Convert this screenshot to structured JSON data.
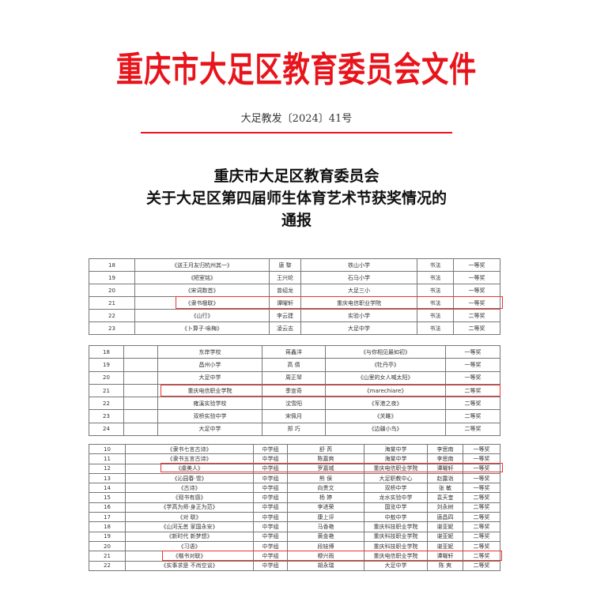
{
  "header": {
    "title": "重庆市大足区教育委员会文件",
    "doc_number": "大足教发〔2024〕41号",
    "headline": [
      "重庆市大足区教育委员会",
      "关于大足区第四届师生体育艺术节获奖情况的",
      "通报"
    ]
  },
  "colors": {
    "accent": "#e8141c",
    "highlight": "#e33333"
  },
  "table1": {
    "rows": [
      [
        "18",
        "《送王月友归杭州其一》",
        "唐 黎",
        "铁山小学",
        "书法",
        "一等奖"
      ],
      [
        "19",
        "《陋室铭》",
        "王兴纶",
        "石马小学",
        "书法",
        "一等奖"
      ],
      [
        "20",
        "《宋词数首》",
        "曾绍龙",
        "大足三小",
        "书法",
        "一等奖"
      ],
      [
        "21",
        "《隶书楹联》",
        "谭曜轩",
        "重庆电信职业学院",
        "书法",
        "一等奖"
      ],
      [
        "22",
        "《山行》",
        "李云建",
        "实验小学",
        "书法",
        "二等奖"
      ],
      [
        "23",
        "《卜算子·咏梅》",
        "凌云志",
        "大足中学",
        "书法",
        "二等奖"
      ]
    ],
    "highlighted_row": 3
  },
  "table2": {
    "rows": [
      [
        "18",
        "",
        "东岸学校",
        "蒋鑫洋",
        "《与你相见最如初》",
        "一等奖"
      ],
      [
        "19",
        "",
        "昌州小学",
        "高 倩",
        "《牡丹亭》",
        "一等奖"
      ],
      [
        "20",
        "",
        "大足中学",
        "周正琴",
        "《山里的女人喊太阳》",
        "一等奖"
      ],
      [
        "21",
        "",
        "重庆电信职业学院",
        "季宣奇",
        "《marechiare》",
        "二等奖"
      ],
      [
        "22",
        "",
        "雍溪实验学校",
        "沈雪阳",
        "《军港之夜》",
        "二等奖"
      ],
      [
        "23",
        "",
        "双桥实验中学",
        "宋佩月",
        "《关雎》",
        "二等奖"
      ],
      [
        "24",
        "",
        "大足中学",
        "郑 巧",
        "《边疆小鸟》",
        "二等奖"
      ]
    ],
    "highlighted_row": 3
  },
  "table3": {
    "rows": [
      [
        "10",
        "《隶书七言古诗》",
        "中学组",
        "舒 芮",
        "海棠中学",
        "李思南",
        "一等奖"
      ],
      [
        "11",
        "《隶书五言古诗》",
        "中学组",
        "陈嘉爽",
        "海棠中学",
        "李思南",
        "一等奖"
      ],
      [
        "12",
        "《虞美人》",
        "中学组",
        "罗嘉城",
        "重庆电信职业学院",
        "谭曜轩",
        "一等奖"
      ],
      [
        "13",
        "《沁园春·雪》",
        "中学组",
        "熊 俣",
        "大足职教中心",
        "赵露诣",
        "一等奖"
      ],
      [
        "14",
        "《古诗》",
        "中学组",
        "向贵文",
        "双桥中学",
        "张 敏",
        "一等奖"
      ],
      [
        "15",
        "《观书有感》",
        "中学组",
        "杨 婷",
        "龙水实验中学",
        "袁天奎",
        "二等奖"
      ],
      [
        "16",
        "《学高为师·身正为范》",
        "中学组",
        "李进荣",
        "国览中学",
        "刘永树",
        "二等奖"
      ],
      [
        "17",
        "《对 联》",
        "中学组",
        "康上评",
        "中敖中学",
        "唐昌四",
        "二等奖"
      ],
      [
        "18",
        "《山河无恙 家国永安》",
        "中学组",
        "马香艳",
        "重庆科技职业学院",
        "谌亚妮",
        "二等奖"
      ],
      [
        "19",
        "《新时代 新梦想》",
        "中学组",
        "黄金艳",
        "重庆科技职业学院",
        "谌亚妮",
        "二等奖"
      ],
      [
        "20",
        "《习语》",
        "中学组",
        "段娃博",
        "重庆科技职业学院",
        "谌亚妮",
        "二等奖"
      ],
      [
        "21",
        "《楷书对联》",
        "中学组",
        "穆兴雨",
        "重庆电信职业学院",
        "谭曜轩",
        "二等奖"
      ],
      [
        "22",
        "《实事求是 不尚空谈》",
        "中学组",
        "胡永瑞",
        "大足中学",
        "陈 爽",
        "二等奖"
      ]
    ],
    "highlighted_rows": [
      2,
      11
    ]
  }
}
